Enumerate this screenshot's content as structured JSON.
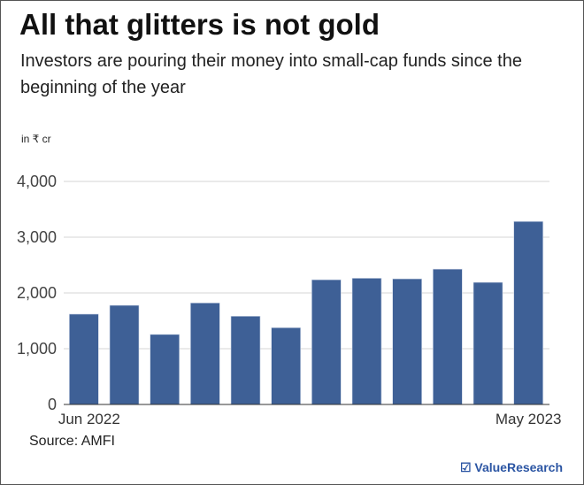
{
  "title": "All that glitters is not gold",
  "subtitle": "Investors are pouring their money into small-cap funds since the beginning of the year",
  "source": "Source: AMFI",
  "brand": "☑ ValueResearch",
  "chart_data": {
    "type": "bar",
    "ylabel": "in ₹ cr",
    "ylim": [
      0,
      4000
    ],
    "yticks": [
      0,
      1000,
      2000,
      3000,
      4000
    ],
    "ytick_labels": [
      "0",
      "1,000",
      "2,000",
      "3,000",
      "4,000"
    ],
    "categories": [
      "Jun 2022",
      "Jul 2022",
      "Aug 2022",
      "Sep 2022",
      "Oct 2022",
      "Nov 2022",
      "Dec 2022",
      "Jan 2023",
      "Feb 2023",
      "Mar 2023",
      "Apr 2023",
      "May 2023"
    ],
    "xtick_labels": [
      "Jun 2022",
      "May 2023"
    ],
    "values": [
      1620,
      1778,
      1256,
      1821,
      1583,
      1377,
      2237,
      2264,
      2253,
      2427,
      2190,
      3282
    ],
    "grid": true,
    "bar_color": "#3e6096"
  }
}
